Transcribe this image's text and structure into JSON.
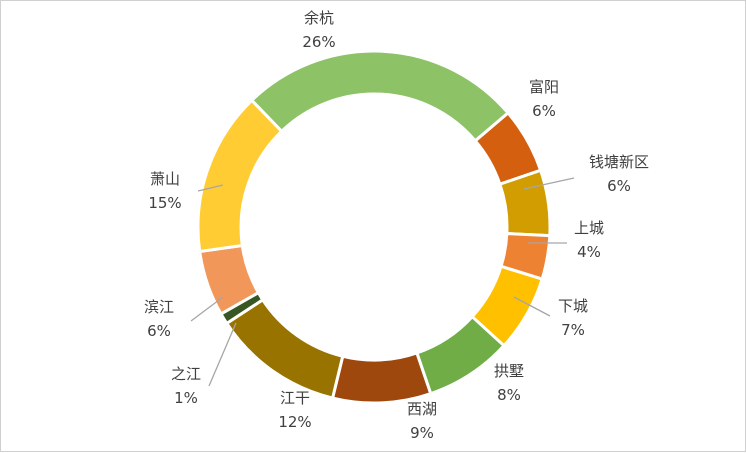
{
  "chart_data": {
    "type": "pie",
    "variant": "doughnut",
    "title": "",
    "categories": [
      "余杭",
      "富阳",
      "钱塘新区",
      "上城",
      "下城",
      "拱墅",
      "西湖",
      "江干",
      "之江",
      "滨江",
      "萧山"
    ],
    "values": [
      26,
      6,
      6,
      4,
      7,
      8,
      9,
      12,
      1,
      6,
      15
    ],
    "value_labels": [
      "26%",
      "6%",
      "6%",
      "4%",
      "7%",
      "8%",
      "9%",
      "12%",
      "1%",
      "6%",
      "15%"
    ],
    "colors": [
      "#8DC266",
      "#D35F0F",
      "#D29D00",
      "#EE8233",
      "#FFC000",
      "#70AD47",
      "#9E480E",
      "#997300",
      "#375623",
      "#F1975A",
      "#FFCC33"
    ],
    "legend": "none",
    "label_style": "outside labels with leader lines, category name and percent"
  }
}
